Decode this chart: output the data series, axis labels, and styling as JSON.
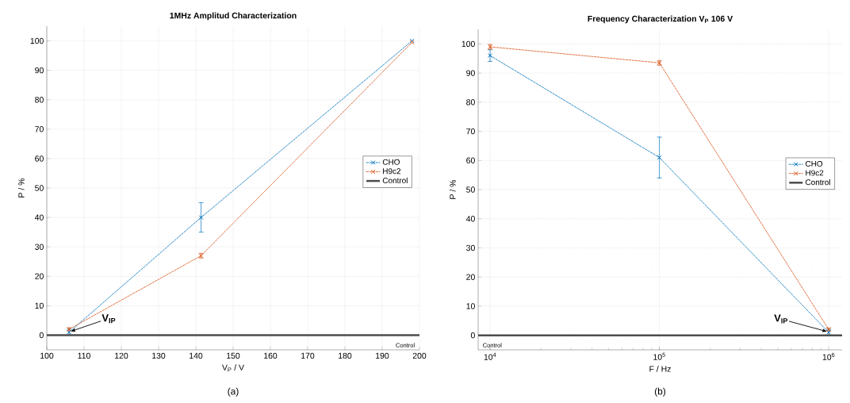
{
  "chart_data": [
    {
      "type": "line",
      "title": "1MHz Amplitud Characterization",
      "xlabel": "V$_{P}$ / V",
      "ylabel": "P / %",
      "x": [
        106,
        141.4,
        198
      ],
      "series": [
        {
          "name": "CHO",
          "color": "#0072bd",
          "values": [
            1,
            40,
            100
          ],
          "errors": [
            1,
            5,
            null
          ]
        },
        {
          "name": "H9c2",
          "color": "#d95319",
          "values": [
            2,
            27,
            99.5
          ],
          "errors": [
            0.5,
            0.8,
            null
          ]
        }
      ],
      "xlim": [
        100,
        200
      ],
      "ylim": [
        -5,
        105
      ],
      "xticks": [
        100,
        110,
        120,
        130,
        140,
        150,
        160,
        170,
        180,
        190,
        200
      ],
      "yticks": [
        0,
        10,
        20,
        30,
        40,
        50,
        60,
        70,
        80,
        90,
        100
      ],
      "ref_lines": [
        {
          "axis": "y",
          "value": 0,
          "label": "Control",
          "color": "#4d4d4d"
        }
      ],
      "annotations": [
        {
          "text": "V$_{IP}$",
          "x": 106,
          "y": 1
        },
        "(a)"
      ],
      "grid": true,
      "legend": "right",
      "marker": "cross",
      "line_style": "dashed"
    },
    {
      "type": "line",
      "title": "Frequency Characterization V$_{P}$ 106 V",
      "xlabel": "F / Hz",
      "ylabel": "P / %",
      "x": [
        10000,
        100000,
        1000000
      ],
      "series": [
        {
          "name": "CHO",
          "color": "#0072bd",
          "values": [
            96,
            61,
            1
          ],
          "errors": [
            2,
            7,
            1
          ]
        },
        {
          "name": "H9c2",
          "color": "#d95319",
          "values": [
            99,
            93.5,
            2
          ],
          "errors": [
            0.8,
            0.8,
            0.5
          ]
        }
      ],
      "xlim": [
        8500,
        1200000
      ],
      "ylim": [
        -5,
        105
      ],
      "xticks": [
        {
          "value": 10000,
          "label": "10$^{4}$"
        },
        {
          "value": 100000,
          "label": "10$^{5}$"
        },
        {
          "value": 1000000,
          "label": "10$^{6}$"
        }
      ],
      "yticks": [
        0,
        10,
        20,
        30,
        40,
        50,
        60,
        70,
        80,
        90,
        100
      ],
      "ref_lines": [
        {
          "axis": "y",
          "value": 0,
          "label": "Control",
          "color": "#4d4d4d"
        }
      ],
      "annotations": [
        {
          "text": "V$_{IP}$",
          "x": 1000000,
          "y": 1
        },
        "(b)"
      ],
      "log": "x",
      "grid": true,
      "legend": "right",
      "marker": "cross",
      "line_style": "dashed"
    }
  ]
}
